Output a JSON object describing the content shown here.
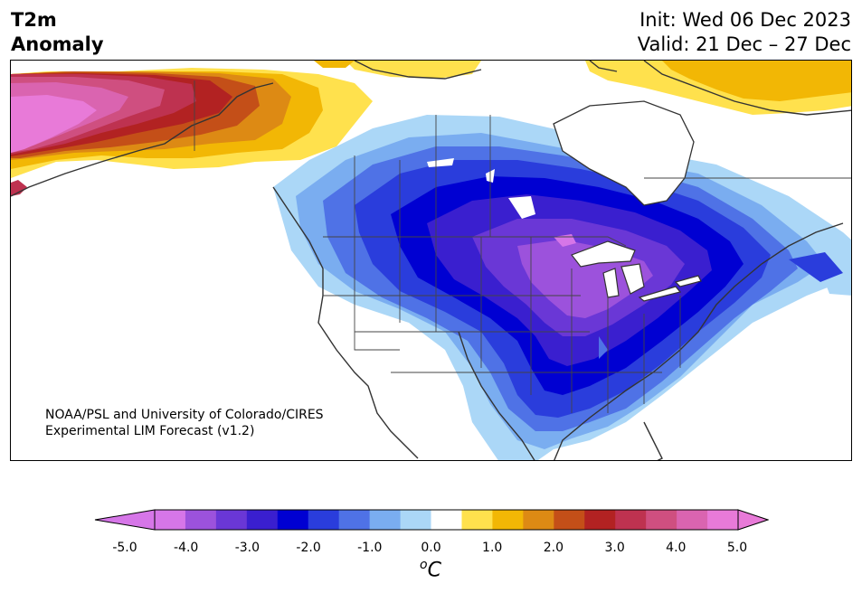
{
  "header": {
    "title_line1": "T2m",
    "title_line2": "Anomaly",
    "init": "Init: Wed 06 Dec 2023",
    "valid": "Valid: 21 Dec – 27 Dec"
  },
  "credit": {
    "line1": "NOAA/PSL and University of Colorado/CIRES",
    "line2": "Experimental LIM Forecast (v1.2)"
  },
  "colorbar": {
    "colors": [
      "#d676e8",
      "#9c52dc",
      "#6a37d6",
      "#3a1fcf",
      "#0000d2",
      "#2a3ddc",
      "#4f72e6",
      "#7aadf0",
      "#abd7f7",
      "#ffffff",
      "#ffe14d",
      "#f2b705",
      "#dd8a14",
      "#c44f18",
      "#b22222",
      "#be3250",
      "#cf4f80",
      "#da64b0",
      "#e87ad8"
    ],
    "extend_low_color": "#d676e8",
    "extend_high_color": "#e87ad8",
    "tick_labels": [
      "-5.0",
      "-4.0",
      "-3.0",
      "-2.0",
      "-1.0",
      "0.0",
      "1.0",
      "2.0",
      "3.0",
      "4.0",
      "5.0"
    ],
    "unit_prefix": "o",
    "unit": "C"
  },
  "map": {
    "region": "North America",
    "land_color": "#ffffff",
    "coast_color": "#333333"
  }
}
